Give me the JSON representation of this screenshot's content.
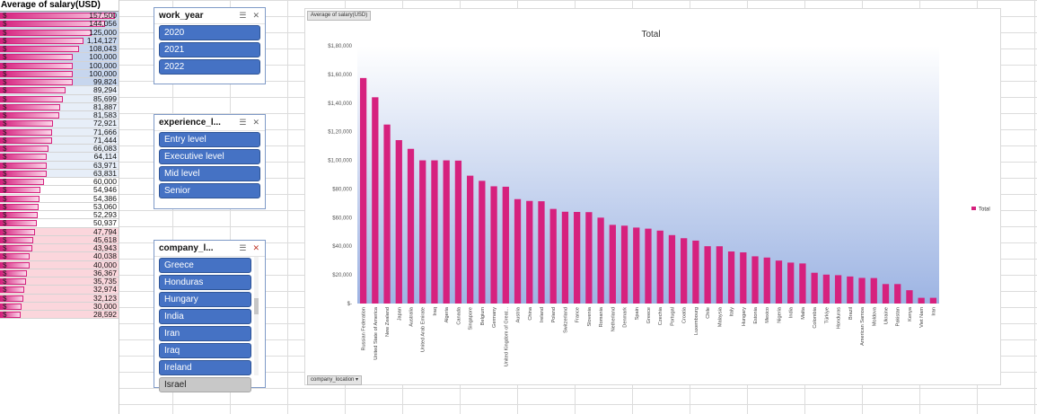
{
  "column": {
    "header": "Average of salary(USD)",
    "currency_symbol": "$",
    "bar_color": "#d6217e",
    "max": 157500,
    "values": [
      "157,500",
      "144,056",
      "125,000",
      "1,14,127",
      "108,043",
      "100,000",
      "100,000",
      "100,000",
      "99,824",
      "89,294",
      "85,699",
      "81,887",
      "81,583",
      "72,921",
      "71,666",
      "71,444",
      "66,083",
      "64,114",
      "63,971",
      "63,831",
      "60,000",
      "54,946",
      "54,386",
      "53,060",
      "52,293",
      "50,937",
      "47,794",
      "45,618",
      "43,943",
      "40,038",
      "40,000",
      "36,367",
      "35,735",
      "32,974",
      "32,123",
      "30,000",
      "28,592"
    ],
    "numbers": [
      157500,
      144056,
      125000,
      114127,
      108043,
      100000,
      100000,
      100000,
      99824,
      89294,
      85699,
      81887,
      81583,
      72921,
      71666,
      71444,
      66083,
      64114,
      63971,
      63831,
      60000,
      54946,
      54386,
      53060,
      52293,
      50937,
      47794,
      45618,
      43943,
      40038,
      40000,
      36367,
      35735,
      32974,
      32123,
      30000,
      28592
    ]
  },
  "slicers": {
    "work_year": {
      "title": "work_year",
      "items": [
        "2020",
        "2021",
        "2022"
      ]
    },
    "experience": {
      "title": "experience_l...",
      "items": [
        "Entry level",
        "Executive level",
        "Mid level",
        "Senior"
      ]
    },
    "company": {
      "title": "company_l...",
      "items": [
        "Greece",
        "Honduras",
        "Hungary",
        "India",
        "Iran",
        "Iraq",
        "Ireland",
        "Israel"
      ],
      "gray_item": "Israel"
    },
    "icon_multiselect": "multi-select-icon",
    "icon_clear_filter": "clear-filter-icon"
  },
  "chart_buttons": {
    "value_field": "Average of salary(USD)",
    "axis_field": "company_location"
  },
  "chart_data": {
    "type": "bar",
    "title": "Total",
    "xlabel": "",
    "ylabel": "",
    "ylim": [
      0,
      180000
    ],
    "yticks": [
      "$-",
      "$20,000",
      "$40,000",
      "$60,000",
      "$80,000",
      "$1,00,000",
      "$1,20,000",
      "$1,40,000",
      "$1,60,000",
      "$1,80,000"
    ],
    "legend": "Total",
    "legend_position": "right",
    "bar_color": "#d6217e",
    "categories": [
      "Russian Federation",
      "United State of America",
      "New Zealand",
      "Japan",
      "Australia",
      "United Arab Emirate",
      "Iraq",
      "Algeria",
      "Canada",
      "Singapore",
      "Belgium",
      "Germany",
      "United Kingdom of Great...",
      "Austria",
      "China",
      "Ireland",
      "Poland",
      "Switzerland",
      "France",
      "Slovenia",
      "Romania",
      "Netherland",
      "Denmark",
      "Spain",
      "Greece",
      "Czechia",
      "Portugal",
      "Croatia",
      "Luxembourg",
      "Chile",
      "Malaysia",
      "Italy",
      "Hungary",
      "Estonia",
      "Mexico",
      "Nigeria",
      "India",
      "Malta",
      "Colombia",
      "Türkiye",
      "Honduras",
      "Brazil",
      "American Samoa",
      "Moldova",
      "Ukraine",
      "Pakistan",
      "Kenya",
      "Viet Nam",
      "Iran"
    ],
    "values": [
      157500,
      144056,
      125000,
      114127,
      108043,
      100000,
      100000,
      100000,
      99824,
      89294,
      85699,
      81887,
      81583,
      72921,
      71666,
      71444,
      66083,
      64114,
      63971,
      63831,
      60000,
      54946,
      54386,
      53060,
      52293,
      50937,
      47794,
      45618,
      43943,
      40038,
      40000,
      36367,
      35735,
      32974,
      32123,
      30000,
      28592,
      28000,
      21500,
      20200,
      19800,
      18900,
      17900,
      17800,
      13600,
      13600,
      9300,
      4000,
      4000
    ]
  }
}
